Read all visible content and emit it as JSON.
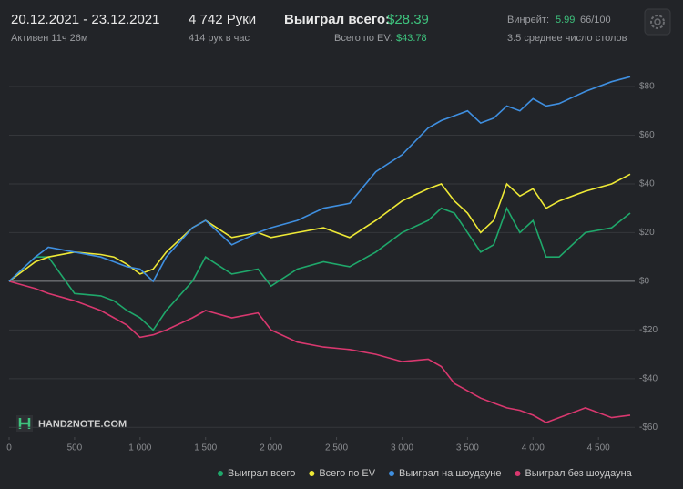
{
  "header": {
    "date_range": "20.12.2021 - 23.12.2021",
    "active": "Активен 11ч 26м",
    "hands": "4 742 Руки",
    "hands_per_hour": "414 рук в час",
    "won_label": "Выиграл всего:",
    "won_value": "$28.39",
    "ev_label": "Всего по EV:",
    "ev_value": "$43.78",
    "winrate_label": "Винрейт:",
    "winrate_value": "5.99",
    "winrate_sample": "66/100",
    "avg_tables": "3.5 среднее число столов"
  },
  "watermark": "HAND2NOTE.COM",
  "chart_data": {
    "type": "line",
    "x": [
      0,
      200,
      300,
      500,
      700,
      800,
      900,
      1000,
      1100,
      1200,
      1400,
      1500,
      1700,
      1900,
      2000,
      2200,
      2400,
      2600,
      2800,
      3000,
      3200,
      3300,
      3400,
      3500,
      3600,
      3700,
      3800,
      3900,
      4000,
      4100,
      4200,
      4400,
      4600,
      4742
    ],
    "series": [
      {
        "name": "Выиграл всего",
        "color": "#1fa86b",
        "values": [
          0,
          10,
          10,
          -5,
          -6,
          -8,
          -12,
          -15,
          -20,
          -12,
          0,
          10,
          3,
          5,
          -2,
          5,
          8,
          6,
          12,
          20,
          25,
          30,
          28,
          20,
          12,
          15,
          30,
          20,
          25,
          10,
          10,
          20,
          22,
          28
        ]
      },
      {
        "name": "Всего по EV",
        "color": "#eee936",
        "values": [
          0,
          8,
          10,
          12,
          11,
          10,
          7,
          3,
          5,
          12,
          22,
          25,
          18,
          20,
          18,
          20,
          22,
          18,
          25,
          33,
          38,
          40,
          33,
          28,
          20,
          25,
          40,
          35,
          38,
          30,
          33,
          37,
          40,
          44
        ]
      },
      {
        "name": "Выиграл на шоудауне",
        "color": "#3f8fe0",
        "values": [
          0,
          10,
          14,
          12,
          10,
          8,
          6,
          5,
          0,
          10,
          22,
          25,
          15,
          20,
          22,
          25,
          30,
          32,
          45,
          52,
          63,
          66,
          68,
          70,
          65,
          67,
          72,
          70,
          75,
          72,
          73,
          78,
          82,
          84
        ]
      },
      {
        "name": "Выиграл без шоудауна",
        "color": "#d9386f",
        "values": [
          0,
          -3,
          -5,
          -8,
          -12,
          -15,
          -18,
          -23,
          -22,
          -20,
          -15,
          -12,
          -15,
          -13,
          -20,
          -25,
          -27,
          -28,
          -30,
          -33,
          -32,
          -35,
          -42,
          -45,
          -48,
          -50,
          -52,
          -53,
          -55,
          -58,
          -56,
          -52,
          -56,
          -55
        ]
      }
    ],
    "xlim": [
      0,
      4742
    ],
    "xticks": [
      0,
      500,
      {
        "value": 1000,
        "label": "1 000"
      },
      {
        "value": 1500,
        "label": "1 500"
      },
      {
        "value": 2000,
        "label": "2 000"
      },
      {
        "value": 2500,
        "label": "2 500"
      },
      {
        "value": 3000,
        "label": "3 000"
      },
      {
        "value": 3500,
        "label": "3 500"
      },
      {
        "value": 4000,
        "label": "4 000"
      },
      {
        "value": 4500,
        "label": "4 500"
      }
    ],
    "ylim": [
      -64,
      91
    ],
    "yticks": [
      {
        "value": -60,
        "label": "-$60"
      },
      {
        "value": -40,
        "label": "-$40"
      },
      {
        "value": -20,
        "label": "-$20"
      },
      {
        "value": 0,
        "label": "$0"
      },
      {
        "value": 20,
        "label": "$20"
      },
      {
        "value": 40,
        "label": "$40"
      },
      {
        "value": 60,
        "label": "$60"
      },
      {
        "value": 80,
        "label": "$80"
      }
    ],
    "grid": true
  }
}
